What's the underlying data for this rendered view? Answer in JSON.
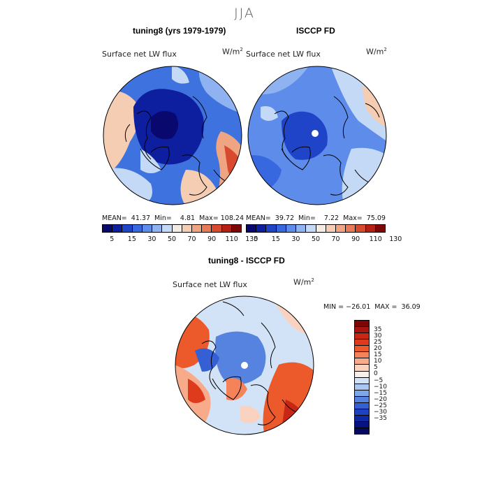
{
  "season": "JJA",
  "colors": {
    "deep_blue": "#0a1f9e",
    "blue": "#2f5fd6",
    "mid_blue": "#6f9be8",
    "light_blue": "#c7dcf6",
    "pale": "#f6e5d6",
    "peach": "#f2b89a",
    "orange_red": "#e0593a",
    "dark_red": "#8a0a0a"
  },
  "panels": {
    "model": {
      "title": "tuning8 (yrs 1979-1979)",
      "variable": "Surface net LW flux",
      "units_base": "W/m",
      "units_exp": "2",
      "stats": "MEAN=  41.37  Min=    4.81  Max= 108.24"
    },
    "obs": {
      "title": "ISCCP FD",
      "variable": "Surface net LW flux",
      "units_base": "W/m",
      "units_exp": "2",
      "stats": "MEAN=  39.72  Min=    7.22  Max=  75.09"
    },
    "diff": {
      "title": "tuning8 - ISCCP FD",
      "variable": "Surface net LW flux",
      "units_base": "W/m",
      "units_exp": "2",
      "stats": "MIN = −26.01  MAX =  36.09"
    }
  },
  "colorbar_main": {
    "colors": [
      "#08086e",
      "#0d1f9e",
      "#1f44c8",
      "#3868df",
      "#5d8ceb",
      "#8fb3f1",
      "#c4d9f6",
      "#f3ece4",
      "#f5cdb2",
      "#f0a582",
      "#e87a56",
      "#d84a2e",
      "#b51f14",
      "#7d0707"
    ],
    "tick_labels": [
      "5",
      "15",
      "30",
      "50",
      "70",
      "90",
      "110",
      "130"
    ]
  },
  "colorbar_diff": {
    "colors": [
      "#7d0707",
      "#a81510",
      "#c82715",
      "#dd3b1c",
      "#ec5a2c",
      "#f4835a",
      "#f7ab8a",
      "#f9d3bf",
      "#f5f0ea",
      "#d3e3f7",
      "#a9c8f1",
      "#7ea7ea",
      "#5783e0",
      "#3560d3",
      "#1f42c0",
      "#1128a4",
      "#081382",
      "#050a60"
    ],
    "tick_labels": [
      "35",
      "30",
      "25",
      "20",
      "15",
      "10",
      "5",
      "0",
      "−5",
      "−10",
      "−15",
      "−20",
      "−25",
      "−30",
      "−35"
    ]
  }
}
